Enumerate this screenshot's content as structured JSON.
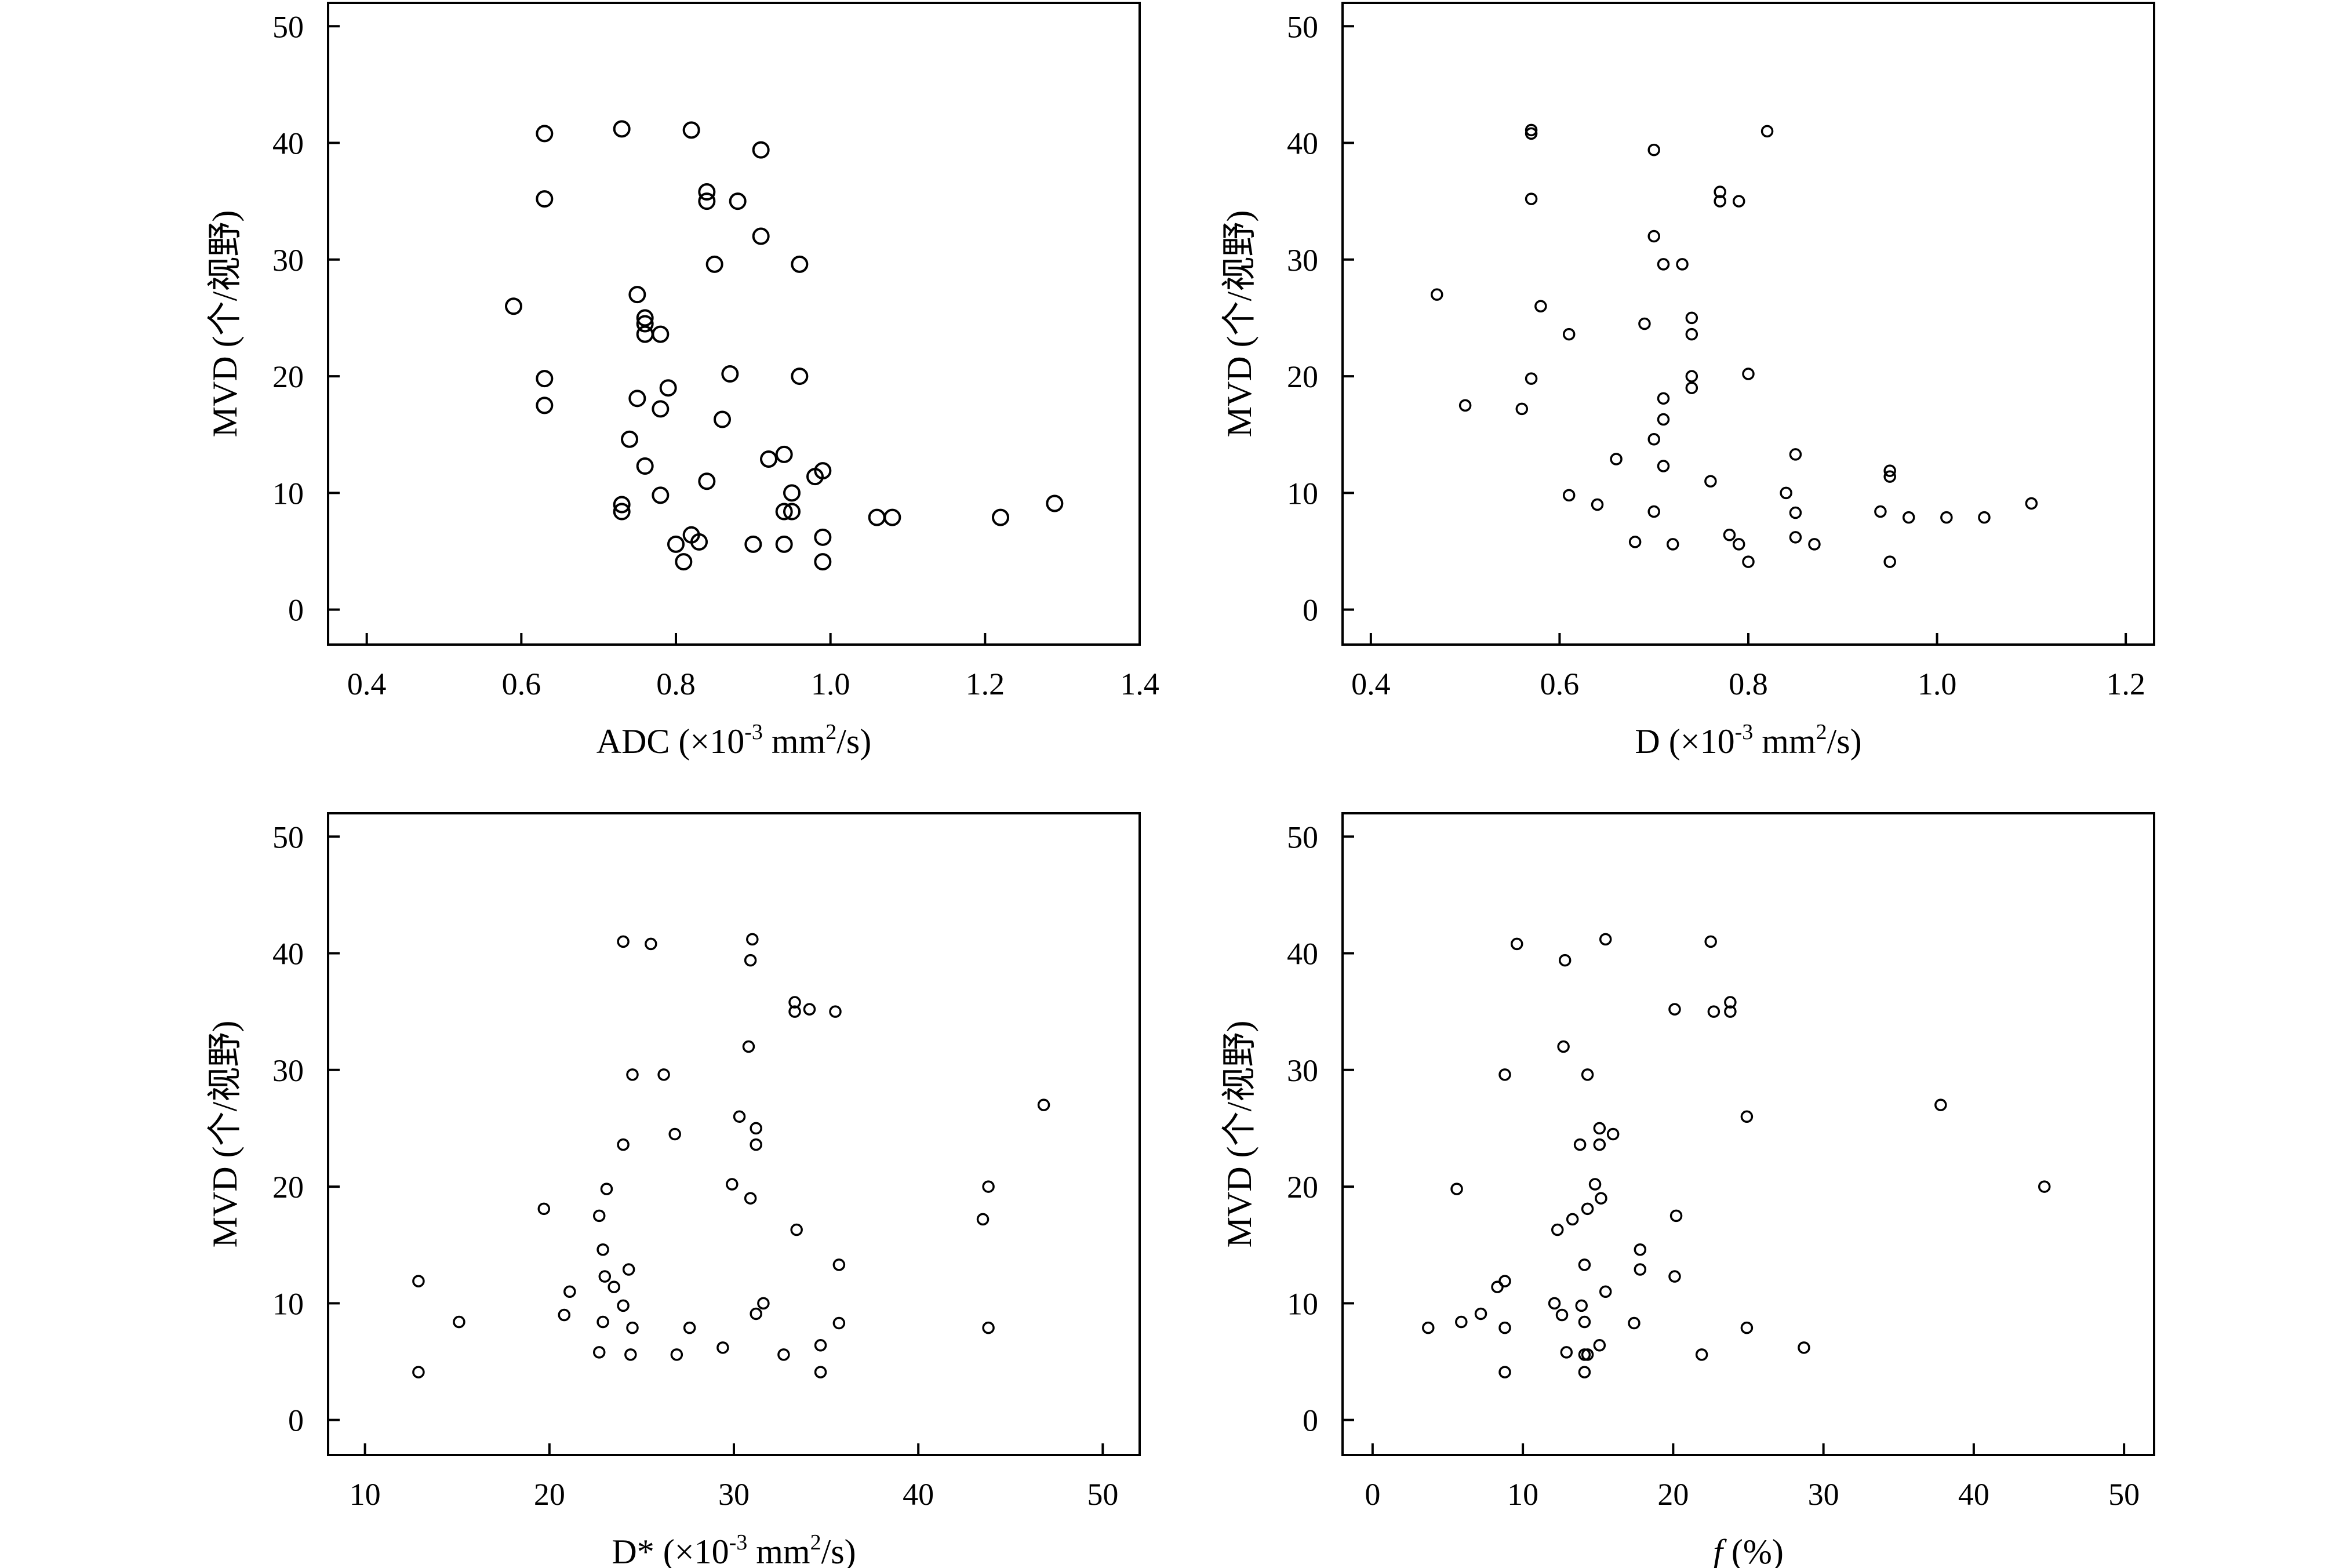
{
  "chart_data": [
    {
      "type": "scatter",
      "xlabel": "ADC (×10⁻³ mm²/s)",
      "xlabel_parts": {
        "text": "ADC (×10",
        "sup1": "-3",
        "mid": " mm",
        "sup2": "2",
        "tail": "/s)"
      },
      "ylabel": "MVD (个/视野)",
      "xlim": [
        0.35,
        1.4
      ],
      "ylim": [
        -3,
        52
      ],
      "xticks": [
        "0.4",
        "0.6",
        "0.8",
        "1.0",
        "1.2",
        "1.4"
      ],
      "yticks": [
        "0",
        "10",
        "20",
        "30",
        "40",
        "50"
      ],
      "marker_size": "large",
      "points": [
        [
          0.63,
          40.8
        ],
        [
          0.73,
          41.2
        ],
        [
          0.82,
          41.1
        ],
        [
          0.91,
          39.4
        ],
        [
          0.63,
          35.2
        ],
        [
          0.84,
          35.8
        ],
        [
          0.84,
          35.0
        ],
        [
          0.88,
          35.0
        ],
        [
          0.91,
          32.0
        ],
        [
          0.85,
          29.6
        ],
        [
          0.96,
          29.6
        ],
        [
          0.59,
          26.0
        ],
        [
          0.75,
          27.0
        ],
        [
          0.76,
          25.0
        ],
        [
          0.76,
          24.5
        ],
        [
          0.76,
          23.6
        ],
        [
          0.78,
          23.6
        ],
        [
          0.63,
          19.8
        ],
        [
          0.75,
          18.1
        ],
        [
          0.79,
          19.0
        ],
        [
          0.87,
          20.2
        ],
        [
          0.96,
          20.0
        ],
        [
          0.63,
          17.5
        ],
        [
          0.78,
          17.2
        ],
        [
          0.86,
          16.3
        ],
        [
          0.74,
          14.6
        ],
        [
          0.76,
          12.3
        ],
        [
          0.92,
          12.9
        ],
        [
          0.94,
          13.3
        ],
        [
          0.99,
          11.9
        ],
        [
          0.98,
          11.4
        ],
        [
          0.84,
          11.0
        ],
        [
          0.78,
          9.8
        ],
        [
          0.73,
          9.0
        ],
        [
          0.73,
          8.4
        ],
        [
          0.95,
          10.0
        ],
        [
          0.94,
          8.4
        ],
        [
          0.95,
          8.4
        ],
        [
          1.06,
          7.9
        ],
        [
          1.08,
          7.9
        ],
        [
          1.22,
          7.9
        ],
        [
          1.29,
          9.1
        ],
        [
          0.82,
          6.4
        ],
        [
          0.83,
          5.8
        ],
        [
          0.8,
          5.6
        ],
        [
          0.9,
          5.6
        ],
        [
          0.94,
          5.6
        ],
        [
          0.99,
          6.2
        ],
        [
          0.81,
          4.1
        ],
        [
          0.99,
          4.1
        ]
      ]
    },
    {
      "type": "scatter",
      "xlabel": "D (×10⁻³ mm²/s)",
      "xlabel_parts": {
        "text": "D (×10",
        "sup1": "-3",
        "mid": " mm",
        "sup2": "2",
        "tail": "/s)"
      },
      "ylabel": "MVD (个/视野)",
      "xlim": [
        0.37,
        1.23
      ],
      "ylim": [
        -3,
        52
      ],
      "xticks": [
        "0.4",
        "0.6",
        "0.8",
        "1.0",
        "1.2"
      ],
      "yticks": [
        "0",
        "10",
        "20",
        "30",
        "40",
        "50"
      ],
      "marker_size": "small",
      "points": [
        [
          0.57,
          40.8
        ],
        [
          0.57,
          41.1
        ],
        [
          0.82,
          41.0
        ],
        [
          0.7,
          39.4
        ],
        [
          0.77,
          35.8
        ],
        [
          0.77,
          35.0
        ],
        [
          0.79,
          35.0
        ],
        [
          0.57,
          35.2
        ],
        [
          0.7,
          32.0
        ],
        [
          0.71,
          29.6
        ],
        [
          0.73,
          29.6
        ],
        [
          0.47,
          27.0
        ],
        [
          0.58,
          26.0
        ],
        [
          0.74,
          25.0
        ],
        [
          0.69,
          24.5
        ],
        [
          0.61,
          23.6
        ],
        [
          0.74,
          23.6
        ],
        [
          0.74,
          20.0
        ],
        [
          0.74,
          19.0
        ],
        [
          0.8,
          20.2
        ],
        [
          0.57,
          19.8
        ],
        [
          0.71,
          18.1
        ],
        [
          0.5,
          17.5
        ],
        [
          0.56,
          17.2
        ],
        [
          0.71,
          16.3
        ],
        [
          0.7,
          14.6
        ],
        [
          0.85,
          13.3
        ],
        [
          0.66,
          12.9
        ],
        [
          0.71,
          12.3
        ],
        [
          0.95,
          11.9
        ],
        [
          0.95,
          11.4
        ],
        [
          0.76,
          11.0
        ],
        [
          0.84,
          10.0
        ],
        [
          0.61,
          9.8
        ],
        [
          0.64,
          9.0
        ],
        [
          0.7,
          8.4
        ],
        [
          0.85,
          8.3
        ],
        [
          0.94,
          8.4
        ],
        [
          0.97,
          7.9
        ],
        [
          1.01,
          7.9
        ],
        [
          1.05,
          7.9
        ],
        [
          1.1,
          9.1
        ],
        [
          0.85,
          6.2
        ],
        [
          0.78,
          6.4
        ],
        [
          0.68,
          5.8
        ],
        [
          0.72,
          5.6
        ],
        [
          0.79,
          5.6
        ],
        [
          0.87,
          5.6
        ],
        [
          0.8,
          4.1
        ],
        [
          0.95,
          4.1
        ]
      ]
    },
    {
      "type": "scatter",
      "xlabel": "D* (×10⁻³ mm²/s)",
      "xlabel_parts": {
        "text": "D* (×10",
        "sup1": "-3",
        "mid": " mm",
        "sup2": "2",
        "tail": "/s)"
      },
      "ylabel": "MVD (个/视野)",
      "xlim": [
        8,
        52
      ],
      "ylim": [
        -3,
        52
      ],
      "xticks": [
        "10",
        "20",
        "30",
        "40",
        "50"
      ],
      "yticks": [
        "0",
        "10",
        "20",
        "30",
        "40",
        "50"
      ],
      "marker_size": "small",
      "points": [
        [
          24.0,
          41.0
        ],
        [
          25.5,
          40.8
        ],
        [
          31.0,
          41.2
        ],
        [
          30.9,
          39.4
        ],
        [
          33.3,
          35.8
        ],
        [
          33.3,
          35.0
        ],
        [
          34.1,
          35.2
        ],
        [
          35.5,
          35.0
        ],
        [
          30.8,
          32.0
        ],
        [
          24.5,
          29.6
        ],
        [
          26.2,
          29.6
        ],
        [
          46.8,
          27.0
        ],
        [
          30.3,
          26.0
        ],
        [
          31.2,
          25.0
        ],
        [
          26.8,
          24.5
        ],
        [
          24.0,
          23.6
        ],
        [
          31.2,
          23.6
        ],
        [
          43.8,
          20.0
        ],
        [
          29.9,
          20.2
        ],
        [
          23.1,
          19.8
        ],
        [
          30.9,
          19.0
        ],
        [
          19.7,
          18.1
        ],
        [
          22.7,
          17.5
        ],
        [
          43.5,
          17.2
        ],
        [
          33.4,
          16.3
        ],
        [
          22.9,
          14.6
        ],
        [
          35.7,
          13.3
        ],
        [
          24.3,
          12.9
        ],
        [
          23.0,
          12.3
        ],
        [
          12.9,
          11.9
        ],
        [
          23.5,
          11.4
        ],
        [
          21.1,
          11.0
        ],
        [
          31.6,
          10.0
        ],
        [
          24.0,
          9.8
        ],
        [
          20.8,
          9.0
        ],
        [
          31.2,
          9.1
        ],
        [
          15.1,
          8.4
        ],
        [
          22.9,
          8.4
        ],
        [
          35.7,
          8.3
        ],
        [
          24.5,
          7.9
        ],
        [
          27.6,
          7.9
        ],
        [
          43.8,
          7.9
        ],
        [
          34.7,
          6.4
        ],
        [
          29.4,
          6.2
        ],
        [
          22.7,
          5.8
        ],
        [
          24.4,
          5.6
        ],
        [
          26.9,
          5.6
        ],
        [
          32.7,
          5.6
        ],
        [
          12.9,
          4.1
        ],
        [
          34.7,
          4.1
        ]
      ]
    },
    {
      "type": "scatter",
      "xlabel": "f (%)",
      "xlabel_parts": {
        "text": "f",
        "italic": true,
        "tail": " (%)"
      },
      "ylabel": "MVD (个/视野)",
      "xlim": [
        -2,
        52
      ],
      "ylim": [
        -3,
        52
      ],
      "xticks": [
        "0",
        "10",
        "20",
        "30",
        "40",
        "50"
      ],
      "yticks": [
        "0",
        "10",
        "20",
        "30",
        "40",
        "50"
      ],
      "marker_size": "small",
      "points": [
        [
          9.6,
          40.8
        ],
        [
          15.5,
          41.2
        ],
        [
          22.5,
          41.0
        ],
        [
          12.8,
          39.4
        ],
        [
          20.1,
          35.2
        ],
        [
          22.7,
          35.0
        ],
        [
          23.8,
          35.8
        ],
        [
          23.8,
          35.0
        ],
        [
          12.7,
          32.0
        ],
        [
          8.8,
          29.6
        ],
        [
          14.3,
          29.6
        ],
        [
          37.8,
          27.0
        ],
        [
          24.9,
          26.0
        ],
        [
          15.1,
          25.0
        ],
        [
          16.0,
          24.5
        ],
        [
          13.8,
          23.6
        ],
        [
          15.1,
          23.6
        ],
        [
          44.7,
          20.0
        ],
        [
          14.8,
          20.2
        ],
        [
          5.6,
          19.8
        ],
        [
          15.2,
          19.0
        ],
        [
          14.3,
          18.1
        ],
        [
          20.2,
          17.5
        ],
        [
          13.3,
          17.2
        ],
        [
          12.3,
          16.3
        ],
        [
          17.8,
          14.6
        ],
        [
          14.1,
          13.3
        ],
        [
          17.8,
          12.9
        ],
        [
          20.1,
          12.3
        ],
        [
          8.8,
          11.9
        ],
        [
          8.3,
          11.4
        ],
        [
          15.5,
          11.0
        ],
        [
          12.1,
          10.0
        ],
        [
          13.9,
          9.8
        ],
        [
          12.6,
          9.0
        ],
        [
          7.2,
          9.1
        ],
        [
          5.9,
          8.4
        ],
        [
          14.1,
          8.4
        ],
        [
          17.4,
          8.3
        ],
        [
          3.7,
          7.9
        ],
        [
          8.8,
          7.9
        ],
        [
          24.9,
          7.9
        ],
        [
          15.1,
          6.4
        ],
        [
          28.7,
          6.2
        ],
        [
          12.9,
          5.8
        ],
        [
          14.1,
          5.6
        ],
        [
          14.3,
          5.6
        ],
        [
          21.9,
          5.6
        ],
        [
          8.8,
          4.1
        ],
        [
          14.1,
          4.1
        ]
      ]
    }
  ]
}
